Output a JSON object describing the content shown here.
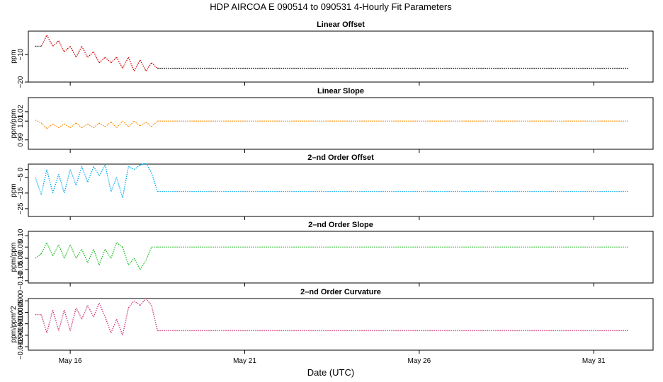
{
  "title": "HDP   AIRCOA E   090514 to 090531   4-Hourly Fit Parameters",
  "xlabel": "Date (UTC)",
  "x_ticks": [
    {
      "value": 16,
      "label": "May 16"
    },
    {
      "value": 21,
      "label": "May 21"
    },
    {
      "value": 26,
      "label": "May 26"
    },
    {
      "value": 31,
      "label": "May 31"
    }
  ],
  "xlim": [
    14.8,
    32.7
  ],
  "chart_data": [
    {
      "type": "line",
      "title": "Linear Offset",
      "ylabel": "ppm",
      "color": "#cc0000",
      "ylim": [
        -20,
        -1.5
      ],
      "yticks": [
        {
          "value": -10,
          "label": "−10"
        },
        {
          "value": -20,
          "label": "−20"
        }
      ],
      "x": [
        15.0,
        15.17,
        15.33,
        15.5,
        15.67,
        15.83,
        16.0,
        16.17,
        16.33,
        16.5,
        16.67,
        16.83,
        17.0,
        17.17,
        17.33,
        17.5,
        17.67,
        17.83,
        18.0,
        18.17,
        18.33,
        18.5,
        32.0
      ],
      "y": [
        -7,
        -7,
        -3,
        -7,
        -5,
        -9,
        -7,
        -11,
        -7,
        -11,
        -9,
        -13,
        -11,
        -13,
        -11,
        -15,
        -11,
        -16,
        -12,
        -16,
        -13,
        -15,
        -15
      ],
      "colors": [
        "#000000",
        "#cc0000",
        "#cc0000",
        "#cc0000",
        "#cc0000",
        "#cc0000",
        "#cc0000",
        "#cc0000",
        "#cc0000",
        "#cc0000",
        "#cc0000",
        "#cc0000",
        "#cc0000",
        "#cc0000",
        "#cc0000",
        "#cc0000",
        "#cc0000",
        "#cc0000",
        "#cc0000",
        "#cc0000",
        "#cc0000",
        "#000000"
      ]
    },
    {
      "type": "line",
      "title": "Linear Slope",
      "ylabel": "ppm/ppm",
      "color": "#ff8c00",
      "ylim": [
        0.98,
        1.035
      ],
      "yticks": [
        {
          "value": 0.99,
          "label": "0.99"
        },
        {
          "value": 1.01,
          "label": "1.01"
        },
        {
          "value": 1.02,
          "label": "1.02"
        }
      ],
      "x": [
        15.0,
        15.17,
        15.33,
        15.5,
        15.67,
        15.83,
        16.0,
        16.17,
        16.33,
        16.5,
        16.67,
        16.83,
        17.0,
        17.17,
        17.33,
        17.5,
        17.67,
        17.83,
        18.0,
        18.17,
        18.33,
        18.5,
        32.0
      ],
      "y": [
        1.011,
        1.008,
        1.002,
        1.007,
        1.003,
        1.007,
        1.003,
        1.008,
        1.003,
        1.007,
        1.003,
        1.008,
        1.004,
        1.009,
        1.003,
        1.01,
        1.004,
        1.01,
        1.005,
        1.009,
        1.004,
        1.01,
        1.01
      ],
      "colors": [
        "#ff8c00",
        "#ff8c00",
        "#ff8c00",
        "#ff8c00",
        "#ff8c00",
        "#ff8c00",
        "#ff8c00",
        "#ff8c00",
        "#ff8c00",
        "#ff8c00",
        "#ff8c00",
        "#ff8c00",
        "#ff8c00",
        "#ff8c00",
        "#ff8c00",
        "#ff8c00",
        "#ff8c00",
        "#ff8c00",
        "#ff8c00",
        "#ff8c00",
        "#ff8c00",
        "#ff8c00"
      ]
    },
    {
      "type": "line",
      "title": "2–nd Order Offset",
      "ylabel": "ppm",
      "color": "#00aaee",
      "ylim": [
        -30,
        3.5
      ],
      "yticks": [
        {
          "value": 0,
          "label": "0"
        },
        {
          "value": -5,
          "label": "−5"
        },
        {
          "value": -15,
          "label": "−15"
        },
        {
          "value": -25,
          "label": "−25"
        }
      ],
      "x": [
        15.0,
        15.17,
        15.33,
        15.5,
        15.67,
        15.83,
        16.0,
        16.17,
        16.33,
        16.5,
        16.67,
        16.83,
        17.0,
        17.17,
        17.33,
        17.5,
        17.67,
        17.83,
        18.0,
        18.17,
        18.33,
        18.5,
        32.0
      ],
      "y": [
        -5,
        -16,
        0,
        -15,
        -3,
        -15,
        0,
        -10,
        2,
        -8,
        2,
        -4,
        3,
        -14,
        -5,
        -18,
        2,
        0,
        3,
        4,
        -2,
        -14,
        -14
      ],
      "colors": [
        "#00aaee",
        "#00aaee",
        "#00aaee",
        "#00aaee",
        "#00aaee",
        "#00aaee",
        "#00aaee",
        "#00aaee",
        "#00aaee",
        "#00aaee",
        "#00aaee",
        "#00aaee",
        "#00aaee",
        "#00aaee",
        "#00aaee",
        "#00aaee",
        "#00aaee",
        "#00aaee",
        "#00aaee",
        "#00aaee",
        "#00aaee",
        "#00aaee"
      ]
    },
    {
      "type": "line",
      "title": "2–nd Order Slope",
      "ylabel": "ppm/ppm",
      "color": "#22bb22",
      "ylim": [
        -0.11,
        0.12
      ],
      "yticks": [
        {
          "value": 0.1,
          "label": "0.10"
        },
        {
          "value": 0.05,
          "label": "0.05"
        },
        {
          "value": 0.0,
          "label": "0.00"
        },
        {
          "value": -0.05,
          "label": "−0.05"
        },
        {
          "value": -0.1,
          "label": "−0.10"
        }
      ],
      "x": [
        15.0,
        15.17,
        15.33,
        15.5,
        15.67,
        15.83,
        16.0,
        16.17,
        16.33,
        16.5,
        16.67,
        16.83,
        17.0,
        17.17,
        17.33,
        17.5,
        17.67,
        17.83,
        18.0,
        18.17,
        18.33,
        18.5,
        32.0
      ],
      "y": [
        0.0,
        0.02,
        0.07,
        0.01,
        0.06,
        0.0,
        0.06,
        0.0,
        0.04,
        -0.02,
        0.04,
        -0.03,
        0.04,
        0.0,
        0.07,
        0.05,
        -0.03,
        0.0,
        -0.05,
        -0.01,
        0.05,
        0.05,
        0.05
      ],
      "colors": [
        "#22bb22",
        "#22bb22",
        "#22bb22",
        "#22bb22",
        "#22bb22",
        "#22bb22",
        "#22bb22",
        "#22bb22",
        "#22bb22",
        "#22bb22",
        "#22bb22",
        "#22bb22",
        "#22bb22",
        "#22bb22",
        "#22bb22",
        "#22bb22",
        "#22bb22",
        "#22bb22",
        "#22bb22",
        "#22bb22",
        "#22bb22",
        "#22bb22"
      ]
    },
    {
      "type": "line",
      "title": "2–nd Order Curvature",
      "ylabel": "ppm/ppm^2",
      "color": "#cc3377",
      "ylim": [
        -0.00215,
        0.0001
      ],
      "yticks": [
        {
          "value": 0.0,
          "label": "0.0000"
        },
        {
          "value": -0.0005,
          "label": "−0.0005"
        },
        {
          "value": -0.001,
          "label": "−0.0010"
        },
        {
          "value": -0.0015,
          "label": "−0.0015"
        },
        {
          "value": -0.002,
          "label": "−0.0020"
        }
      ],
      "x": [
        15.0,
        15.17,
        15.33,
        15.5,
        15.67,
        15.83,
        16.0,
        16.17,
        16.33,
        16.5,
        16.67,
        16.83,
        17.0,
        17.17,
        17.33,
        17.5,
        17.67,
        17.83,
        18.0,
        18.17,
        18.33,
        18.5,
        32.0
      ],
      "y": [
        -0.0006,
        -0.0006,
        -0.0014,
        -0.0004,
        -0.0013,
        -0.0004,
        -0.0013,
        -0.0003,
        -0.0008,
        -0.0002,
        -0.0007,
        -0.0001,
        -0.0007,
        -0.0014,
        -0.0008,
        -0.0015,
        -0.0003,
        0.0,
        -0.0002,
        0.0001,
        -0.0002,
        -0.0013,
        -0.0013
      ],
      "colors": [
        "#cc3377",
        "#cc3377",
        "#cc3377",
        "#cc3377",
        "#cc3377",
        "#cc3377",
        "#cc3377",
        "#cc3377",
        "#cc3377",
        "#cc3377",
        "#cc3377",
        "#cc3377",
        "#cc3377",
        "#cc3377",
        "#cc3377",
        "#cc3377",
        "#cc3377",
        "#cc3377",
        "#cc3377",
        "#cc3377",
        "#cc3377",
        "#cc3377"
      ]
    }
  ]
}
